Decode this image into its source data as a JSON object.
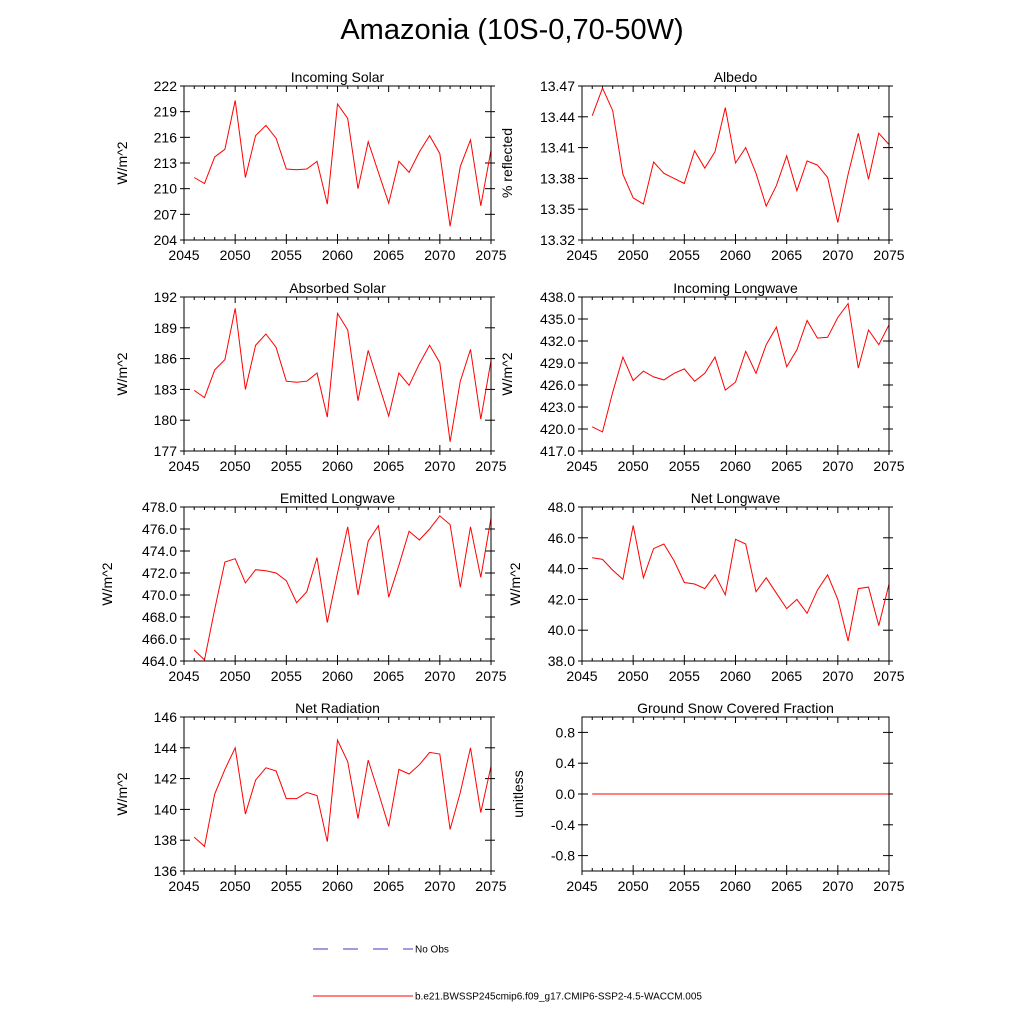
{
  "page": {
    "title": "Amazonia (10S-0,70-50W)"
  },
  "legend": {
    "obs_label": "No Obs",
    "model_label": "b.e21.BWSSP245cmip6.f09_g17.CMIP6-SSP2-4.5-WACCM.005",
    "obs_color": "#3b3bbf",
    "model_color": "#ff0000"
  },
  "chart_data": [
    {
      "type": "line",
      "title": "Incoming Solar",
      "xlabel": "",
      "ylabel": "W/m^2",
      "xlim": [
        2045,
        2075
      ],
      "ylim": [
        204,
        222
      ],
      "yticks": [
        204,
        207,
        210,
        213,
        216,
        219,
        222
      ],
      "ytick_labels": [
        "204",
        "207",
        "210",
        "213",
        "216",
        "219",
        "222"
      ],
      "xticks": [
        2045,
        2050,
        2055,
        2060,
        2065,
        2070,
        2075
      ],
      "xtick_labels": [
        "2045",
        "2050",
        "2055",
        "2060",
        "2065",
        "2070",
        "2075"
      ],
      "x": [
        2046,
        2047,
        2048,
        2049,
        2050,
        2051,
        2052,
        2053,
        2054,
        2055,
        2056,
        2057,
        2058,
        2059,
        2060,
        2061,
        2062,
        2063,
        2064,
        2065,
        2066,
        2067,
        2068,
        2069,
        2070,
        2071,
        2072,
        2073,
        2074,
        2075
      ],
      "series": [
        {
          "values": [
            211.3,
            210.6,
            213.7,
            214.6,
            220.3,
            211.3,
            216.2,
            217.4,
            215.9,
            212.3,
            212.2,
            212.3,
            213.2,
            208.2,
            219.9,
            218.2,
            210.0,
            215.5,
            211.9,
            208.3,
            213.2,
            211.9,
            214.3,
            216.2,
            214.1,
            205.6,
            212.6,
            215.7,
            208.0,
            214.5
          ]
        }
      ]
    },
    {
      "type": "line",
      "title": "Albedo",
      "xlabel": "",
      "ylabel": "% reflected",
      "xlim": [
        2045,
        2075
      ],
      "ylim": [
        13.32,
        13.47
      ],
      "yticks": [
        13.32,
        13.35,
        13.38,
        13.41,
        13.44,
        13.47
      ],
      "ytick_labels": [
        "13.32",
        "13.35",
        "13.38",
        "13.41",
        "13.44",
        "13.47"
      ],
      "xticks": [
        2045,
        2050,
        2055,
        2060,
        2065,
        2070,
        2075
      ],
      "xtick_labels": [
        "2045",
        "2050",
        "2055",
        "2060",
        "2065",
        "2070",
        "2075"
      ],
      "x": [
        2046,
        2047,
        2048,
        2049,
        2050,
        2051,
        2052,
        2053,
        2054,
        2055,
        2056,
        2057,
        2058,
        2059,
        2060,
        2061,
        2062,
        2063,
        2064,
        2065,
        2066,
        2067,
        2068,
        2069,
        2070,
        2071,
        2072,
        2073,
        2074,
        2075
      ],
      "series": [
        {
          "values": [
            13.441,
            13.468,
            13.446,
            13.384,
            13.361,
            13.355,
            13.396,
            13.385,
            13.38,
            13.375,
            13.407,
            13.39,
            13.406,
            13.449,
            13.395,
            13.41,
            13.385,
            13.353,
            13.373,
            13.402,
            13.368,
            13.397,
            13.393,
            13.381,
            13.337,
            13.384,
            13.424,
            13.379,
            13.424,
            13.413
          ]
        }
      ]
    },
    {
      "type": "line",
      "title": "Absorbed Solar",
      "xlabel": "",
      "ylabel": "W/m^2",
      "xlim": [
        2045,
        2075
      ],
      "ylim": [
        177,
        192
      ],
      "yticks": [
        177,
        180,
        183,
        186,
        189,
        192
      ],
      "ytick_labels": [
        "177",
        "180",
        "183",
        "186",
        "189",
        "192"
      ],
      "xticks": [
        2045,
        2050,
        2055,
        2060,
        2065,
        2070,
        2075
      ],
      "xtick_labels": [
        "2045",
        "2050",
        "2055",
        "2060",
        "2065",
        "2070",
        "2075"
      ],
      "x": [
        2046,
        2047,
        2048,
        2049,
        2050,
        2051,
        2052,
        2053,
        2054,
        2055,
        2056,
        2057,
        2058,
        2059,
        2060,
        2061,
        2062,
        2063,
        2064,
        2065,
        2066,
        2067,
        2068,
        2069,
        2070,
        2071,
        2072,
        2073,
        2074,
        2075
      ],
      "series": [
        {
          "values": [
            182.9,
            182.2,
            184.9,
            185.9,
            190.9,
            183.0,
            187.3,
            188.4,
            187.1,
            183.8,
            183.7,
            183.8,
            184.6,
            180.3,
            190.4,
            188.8,
            181.9,
            186.8,
            183.6,
            180.4,
            184.6,
            183.4,
            185.5,
            187.3,
            185.6,
            177.9,
            183.8,
            186.9,
            180.1,
            185.8
          ]
        }
      ]
    },
    {
      "type": "line",
      "title": "Incoming Longwave",
      "xlabel": "",
      "ylabel": "W/m^2",
      "xlim": [
        2045,
        2075
      ],
      "ylim": [
        417.0,
        438.0
      ],
      "yticks": [
        417.0,
        420.0,
        423.0,
        426.0,
        429.0,
        432.0,
        435.0,
        438.0
      ],
      "ytick_labels": [
        "417.0",
        "420.0",
        "423.0",
        "426.0",
        "429.0",
        "432.0",
        "435.0",
        "438.0"
      ],
      "xticks": [
        2045,
        2050,
        2055,
        2060,
        2065,
        2070,
        2075
      ],
      "xtick_labels": [
        "2045",
        "2050",
        "2055",
        "2060",
        "2065",
        "2070",
        "2075"
      ],
      "x": [
        2046,
        2047,
        2048,
        2049,
        2050,
        2051,
        2052,
        2053,
        2054,
        2055,
        2056,
        2057,
        2058,
        2059,
        2060,
        2061,
        2062,
        2063,
        2064,
        2065,
        2066,
        2067,
        2068,
        2069,
        2070,
        2071,
        2072,
        2073,
        2074,
        2075
      ],
      "series": [
        {
          "values": [
            420.3,
            419.6,
            425.0,
            429.8,
            426.6,
            427.9,
            427.1,
            426.7,
            427.6,
            428.2,
            426.5,
            427.6,
            429.8,
            425.3,
            426.4,
            430.6,
            427.6,
            431.5,
            433.9,
            428.5,
            430.8,
            434.8,
            432.4,
            432.5,
            435.2,
            437.1,
            428.3,
            433.5,
            431.5,
            434.2
          ]
        }
      ]
    },
    {
      "type": "line",
      "title": "Emitted Longwave",
      "xlabel": "",
      "ylabel": "W/m^2",
      "xlim": [
        2045,
        2075
      ],
      "ylim": [
        464.0,
        478.0
      ],
      "yticks": [
        464.0,
        466.0,
        468.0,
        470.0,
        472.0,
        474.0,
        476.0,
        478.0
      ],
      "ytick_labels": [
        "464.0",
        "466.0",
        "468.0",
        "470.0",
        "472.0",
        "474.0",
        "476.0",
        "478.0"
      ],
      "xticks": [
        2045,
        2050,
        2055,
        2060,
        2065,
        2070,
        2075
      ],
      "xtick_labels": [
        "2045",
        "2050",
        "2055",
        "2060",
        "2065",
        "2070",
        "2075"
      ],
      "x": [
        2046,
        2047,
        2048,
        2049,
        2050,
        2051,
        2052,
        2053,
        2054,
        2055,
        2056,
        2057,
        2058,
        2059,
        2060,
        2061,
        2062,
        2063,
        2064,
        2065,
        2066,
        2067,
        2068,
        2069,
        2070,
        2071,
        2072,
        2073,
        2074,
        2075
      ],
      "series": [
        {
          "values": [
            465.0,
            464.1,
            468.7,
            473.0,
            473.3,
            471.1,
            472.3,
            472.2,
            472.0,
            471.3,
            469.3,
            470.3,
            473.4,
            467.5,
            472.0,
            476.2,
            470.0,
            474.9,
            476.3,
            469.8,
            472.7,
            475.8,
            475.0,
            476.0,
            477.2,
            476.4,
            470.7,
            476.2,
            471.6,
            477.0
          ]
        }
      ]
    },
    {
      "type": "line",
      "title": "Net Longwave",
      "xlabel": "",
      "ylabel": "W/m^2",
      "xlim": [
        2045,
        2075
      ],
      "ylim": [
        38.0,
        48.0
      ],
      "yticks": [
        38.0,
        40.0,
        42.0,
        44.0,
        46.0,
        48.0
      ],
      "ytick_labels": [
        "38.0",
        "40.0",
        "42.0",
        "44.0",
        "46.0",
        "48.0"
      ],
      "xticks": [
        2045,
        2050,
        2055,
        2060,
        2065,
        2070,
        2075
      ],
      "xtick_labels": [
        "2045",
        "2050",
        "2055",
        "2060",
        "2065",
        "2070",
        "2075"
      ],
      "x": [
        2046,
        2047,
        2048,
        2049,
        2050,
        2051,
        2052,
        2053,
        2054,
        2055,
        2056,
        2057,
        2058,
        2059,
        2060,
        2061,
        2062,
        2063,
        2064,
        2065,
        2066,
        2067,
        2068,
        2069,
        2070,
        2071,
        2072,
        2073,
        2074,
        2075
      ],
      "series": [
        {
          "values": [
            44.7,
            44.6,
            43.9,
            43.3,
            46.8,
            43.4,
            45.3,
            45.6,
            44.5,
            43.1,
            43.0,
            42.7,
            43.6,
            42.3,
            45.9,
            45.6,
            42.5,
            43.4,
            42.4,
            41.4,
            42.0,
            41.1,
            42.6,
            43.6,
            42.0,
            39.3,
            42.7,
            42.8,
            40.3,
            43.0
          ]
        }
      ]
    },
    {
      "type": "line",
      "title": "Net Radiation",
      "xlabel": "",
      "ylabel": "W/m^2",
      "xlim": [
        2045,
        2075
      ],
      "ylim": [
        136,
        146
      ],
      "yticks": [
        136,
        138,
        140,
        142,
        144,
        146
      ],
      "ytick_labels": [
        "136",
        "138",
        "140",
        "142",
        "144",
        "146"
      ],
      "xticks": [
        2045,
        2050,
        2055,
        2060,
        2065,
        2070,
        2075
      ],
      "xtick_labels": [
        "2045",
        "2050",
        "2055",
        "2060",
        "2065",
        "2070",
        "2075"
      ],
      "x": [
        2046,
        2047,
        2048,
        2049,
        2050,
        2051,
        2052,
        2053,
        2054,
        2055,
        2056,
        2057,
        2058,
        2059,
        2060,
        2061,
        2062,
        2063,
        2064,
        2065,
        2066,
        2067,
        2068,
        2069,
        2070,
        2071,
        2072,
        2073,
        2074,
        2075
      ],
      "series": [
        {
          "values": [
            138.2,
            137.6,
            141.0,
            142.6,
            144.0,
            139.7,
            141.9,
            142.7,
            142.5,
            140.7,
            140.7,
            141.1,
            140.9,
            137.9,
            144.5,
            143.1,
            139.4,
            143.2,
            141.1,
            138.9,
            142.6,
            142.3,
            142.9,
            143.7,
            143.6,
            138.7,
            141.1,
            144.0,
            139.8,
            142.8
          ]
        }
      ]
    },
    {
      "type": "line",
      "title": "Ground Snow Covered Fraction",
      "xlabel": "",
      "ylabel": "unitless",
      "xlim": [
        2045,
        2075
      ],
      "ylim": [
        -1.0,
        1.0
      ],
      "yticks": [
        -0.8,
        -0.4,
        0.0,
        0.4,
        0.8
      ],
      "ytick_labels": [
        "-0.8",
        "-0.4",
        "0.0",
        "0.4",
        "0.8"
      ],
      "xticks": [
        2045,
        2050,
        2055,
        2060,
        2065,
        2070,
        2075
      ],
      "xtick_labels": [
        "2045",
        "2050",
        "2055",
        "2060",
        "2065",
        "2070",
        "2075"
      ],
      "x": [
        2046,
        2075
      ],
      "series": [
        {
          "values": [
            0.0,
            0.0
          ]
        }
      ]
    }
  ]
}
